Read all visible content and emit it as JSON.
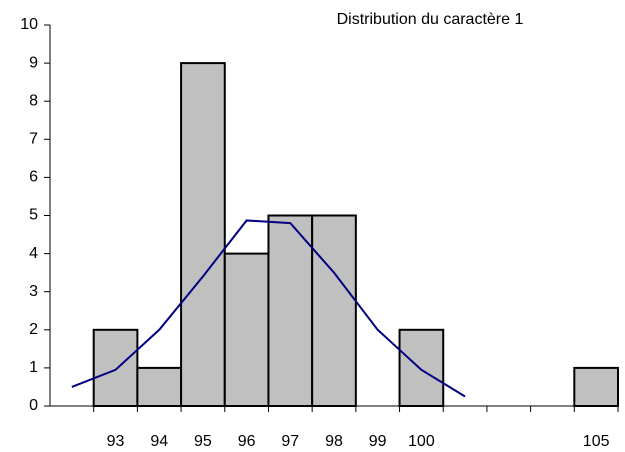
{
  "chart_data": {
    "type": "combo",
    "title": "Distribution du caractère 1",
    "categories": [
      null,
      "93",
      "94",
      "95",
      "96",
      "97",
      "98",
      "99",
      "100",
      null,
      null,
      null,
      "105"
    ],
    "series": [
      {
        "type": "bar",
        "color": "#c0c0c0",
        "values": [
          0,
          2,
          1,
          9,
          4,
          5,
          5,
          0,
          2,
          0,
          0,
          0,
          1
        ]
      },
      {
        "type": "line",
        "color": "#000080",
        "values": [
          0.5,
          0.95,
          2.0,
          3.4,
          4.87,
          4.8,
          3.5,
          2.0,
          0.95,
          0.25,
          null,
          null,
          null
        ]
      }
    ],
    "ylim": [
      0,
      10
    ],
    "yticks": [
      0,
      1,
      2,
      3,
      4,
      5,
      6,
      7,
      8,
      9,
      10
    ],
    "grid": false
  }
}
